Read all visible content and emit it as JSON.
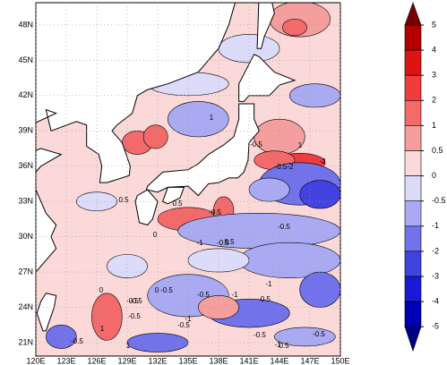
{
  "map": {
    "xticks": [
      {
        "value": 120,
        "label": "120E"
      },
      {
        "value": 123,
        "label": "123E"
      },
      {
        "value": 126,
        "label": "126E"
      },
      {
        "value": 129,
        "label": "129E"
      },
      {
        "value": 132,
        "label": "132E"
      },
      {
        "value": 135,
        "label": "135E"
      },
      {
        "value": 138,
        "label": "138E"
      },
      {
        "value": 141,
        "label": "141E"
      },
      {
        "value": 144,
        "label": "144E"
      },
      {
        "value": 147,
        "label": "147E"
      },
      {
        "value": 150,
        "label": "150E"
      }
    ],
    "yticks": [
      {
        "value": 21,
        "label": "21N"
      },
      {
        "value": 24,
        "label": "24N"
      },
      {
        "value": 27,
        "label": "27N"
      },
      {
        "value": 30,
        "label": "30N"
      },
      {
        "value": 33,
        "label": "33N"
      },
      {
        "value": 36,
        "label": "36N"
      },
      {
        "value": 39,
        "label": "39N"
      },
      {
        "value": 42,
        "label": "42N"
      },
      {
        "value": 45,
        "label": "45N"
      },
      {
        "value": 48,
        "label": "48N"
      }
    ],
    "contour_labels": [
      "-0.5",
      "1",
      "0",
      "-0.5",
      "0.5",
      "-0.5",
      "0",
      "-0.5",
      "-0.5",
      "-1",
      "-0.5-2",
      "-2",
      "1",
      "0.5",
      "-0.5",
      "0.5",
      "-1",
      "-0.5",
      "-0.5",
      "-0.5",
      "-1",
      "-0.5",
      "-1",
      "1",
      "-0.5",
      "-0.5",
      "0",
      "-1",
      "-0.5",
      "0.5",
      "1",
      "-0.5"
    ]
  },
  "colorbar": {
    "levels": [
      5,
      4,
      3,
      2,
      1,
      0.5,
      0,
      -0.5,
      -1,
      -2,
      -3,
      -4,
      -5
    ],
    "colors": [
      "#b40000",
      "#dc1414",
      "#f03c3c",
      "#f26a6a",
      "#f59e9e",
      "#fbd9d9",
      "#dcdcfa",
      "#aaaaf2",
      "#7272ea",
      "#4242e0",
      "#1a1ad6",
      "#0000b4"
    ],
    "over_color": "#780000",
    "under_color": "#000088"
  }
}
